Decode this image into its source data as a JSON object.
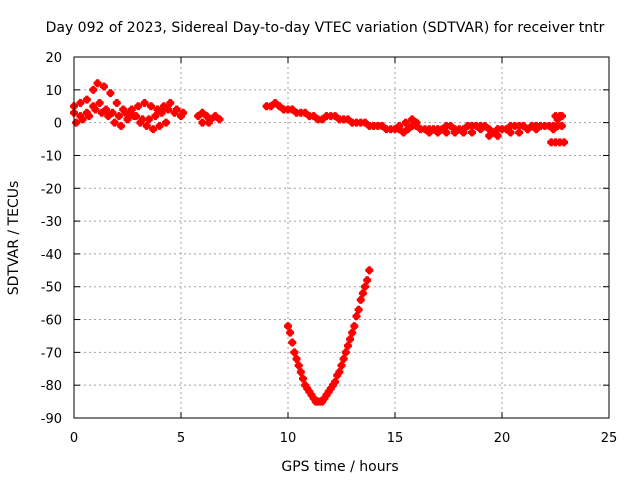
{
  "chart_data": {
    "type": "scatter",
    "title": "Day 092 of 2023, Sidereal Day-to-day VTEC variation (SDTVAR) for receiver tntr",
    "xlabel": "GPS time / hours",
    "ylabel": "SDTVAR / TECUs",
    "xlim": [
      0,
      25
    ],
    "ylim": [
      -90,
      20
    ],
    "xticks": [
      "0",
      "5",
      "10",
      "15",
      "20",
      "25"
    ],
    "yticks": [
      "20",
      "10",
      "0",
      "-10",
      "-20",
      "-30",
      "-40",
      "-50",
      "-60",
      "-70",
      "-80",
      "-90"
    ],
    "grid": true,
    "marker_color": "#ff0000",
    "series": [
      {
        "points": [
          [
            0.0,
            5
          ],
          [
            0.3,
            6
          ],
          [
            0.6,
            7
          ],
          [
            0.9,
            10
          ],
          [
            1.1,
            12
          ],
          [
            1.4,
            11
          ],
          [
            1.7,
            9
          ],
          [
            2.0,
            6
          ],
          [
            2.3,
            4
          ],
          [
            2.6,
            3
          ],
          [
            2.9,
            2
          ],
          [
            3.2,
            1
          ],
          [
            3.5,
            1
          ],
          [
            3.8,
            2
          ],
          [
            4.1,
            3
          ],
          [
            4.4,
            4
          ],
          [
            4.7,
            3
          ],
          [
            5.0,
            2
          ],
          [
            0.0,
            3
          ],
          [
            0.3,
            2
          ],
          [
            0.6,
            3
          ],
          [
            0.9,
            5
          ],
          [
            1.2,
            6
          ],
          [
            1.5,
            4
          ],
          [
            1.8,
            3
          ],
          [
            2.1,
            2
          ],
          [
            2.4,
            3
          ],
          [
            2.7,
            4
          ],
          [
            3.0,
            5
          ],
          [
            3.3,
            6
          ],
          [
            3.6,
            5
          ],
          [
            3.9,
            4
          ],
          [
            4.2,
            5
          ],
          [
            4.5,
            6
          ],
          [
            4.8,
            4
          ],
          [
            5.1,
            3
          ],
          [
            0.1,
            0
          ],
          [
            0.4,
            1
          ],
          [
            0.7,
            2
          ],
          [
            1.0,
            4
          ],
          [
            1.3,
            3
          ],
          [
            1.6,
            2
          ],
          [
            1.9,
            0
          ],
          [
            2.2,
            -1
          ],
          [
            2.5,
            1
          ],
          [
            2.8,
            2
          ],
          [
            3.1,
            0
          ],
          [
            3.4,
            -1
          ],
          [
            3.7,
            -2
          ],
          [
            4.0,
            -1
          ],
          [
            4.3,
            0
          ],
          [
            5.8,
            2
          ],
          [
            6.0,
            3
          ],
          [
            6.2,
            2
          ],
          [
            6.4,
            1
          ],
          [
            6.6,
            2
          ],
          [
            6.8,
            1
          ],
          [
            6.0,
            0
          ],
          [
            6.3,
            0
          ],
          [
            9.0,
            5
          ],
          [
            9.2,
            5
          ],
          [
            9.4,
            6
          ],
          [
            9.6,
            5
          ],
          [
            9.8,
            4
          ],
          [
            10.0,
            4
          ],
          [
            10.2,
            4
          ],
          [
            10.4,
            3
          ],
          [
            10.6,
            3
          ],
          [
            10.8,
            3
          ],
          [
            11.0,
            2
          ],
          [
            11.2,
            2
          ],
          [
            11.4,
            1
          ],
          [
            11.6,
            1
          ],
          [
            11.8,
            2
          ],
          [
            12.0,
            2
          ],
          [
            12.2,
            2
          ],
          [
            12.4,
            1
          ],
          [
            12.6,
            1
          ],
          [
            12.8,
            1
          ],
          [
            13.0,
            0
          ],
          [
            13.2,
            0
          ],
          [
            13.4,
            0
          ],
          [
            13.6,
            0
          ],
          [
            13.8,
            -1
          ],
          [
            14.0,
            -1
          ],
          [
            14.2,
            -1
          ],
          [
            14.4,
            -1
          ],
          [
            14.6,
            -2
          ],
          [
            14.8,
            -2
          ],
          [
            15.0,
            -2
          ],
          [
            15.2,
            -2
          ],
          [
            15.4,
            -3
          ],
          [
            15.6,
            -2
          ],
          [
            15.8,
            -1
          ],
          [
            16.0,
            -1
          ],
          [
            16.2,
            -2
          ],
          [
            15.2,
            -1
          ],
          [
            15.5,
            0
          ],
          [
            15.8,
            1
          ],
          [
            16.0,
            0
          ],
          [
            16.4,
            -2
          ],
          [
            16.6,
            -2
          ],
          [
            16.8,
            -2
          ],
          [
            17.0,
            -2
          ],
          [
            17.2,
            -2
          ],
          [
            17.4,
            -1
          ],
          [
            17.6,
            -1
          ],
          [
            17.8,
            -2
          ],
          [
            18.0,
            -2
          ],
          [
            18.2,
            -2
          ],
          [
            18.4,
            -1
          ],
          [
            18.6,
            -1
          ],
          [
            18.8,
            -1
          ],
          [
            19.0,
            -1
          ],
          [
            19.2,
            -1
          ],
          [
            19.4,
            -2
          ],
          [
            19.6,
            -3
          ],
          [
            19.8,
            -2
          ],
          [
            16.6,
            -3
          ],
          [
            17.0,
            -3
          ],
          [
            17.4,
            -3
          ],
          [
            17.8,
            -3
          ],
          [
            18.2,
            -3
          ],
          [
            18.6,
            -3
          ],
          [
            19.0,
            -2
          ],
          [
            19.4,
            -4
          ],
          [
            19.8,
            -4
          ],
          [
            20.0,
            -2
          ],
          [
            20.2,
            -2
          ],
          [
            20.4,
            -1
          ],
          [
            20.6,
            -1
          ],
          [
            20.8,
            -1
          ],
          [
            21.0,
            -1
          ],
          [
            21.2,
            -2
          ],
          [
            21.4,
            -1
          ],
          [
            21.6,
            -1
          ],
          [
            21.8,
            -1
          ],
          [
            22.0,
            -1
          ],
          [
            22.2,
            -1
          ],
          [
            22.4,
            -2
          ],
          [
            22.6,
            -1
          ],
          [
            22.8,
            -1
          ],
          [
            20.4,
            -3
          ],
          [
            20.8,
            -3
          ],
          [
            21.2,
            -2
          ],
          [
            21.6,
            -2
          ],
          [
            22.4,
            -1
          ],
          [
            22.6,
            1
          ],
          [
            22.8,
            2
          ],
          [
            22.5,
            2
          ],
          [
            22.7,
            2
          ],
          [
            22.3,
            -6
          ],
          [
            22.5,
            -6
          ],
          [
            22.7,
            -6
          ],
          [
            22.9,
            -6
          ],
          [
            10.0,
            -62
          ],
          [
            10.1,
            -64
          ],
          [
            10.2,
            -67
          ],
          [
            10.3,
            -70
          ],
          [
            10.4,
            -72
          ],
          [
            10.5,
            -74
          ],
          [
            10.6,
            -76
          ],
          [
            10.7,
            -78
          ],
          [
            10.8,
            -80
          ],
          [
            10.9,
            -81
          ],
          [
            11.0,
            -82
          ],
          [
            11.1,
            -83
          ],
          [
            11.2,
            -84
          ],
          [
            11.3,
            -85
          ],
          [
            11.4,
            -85
          ],
          [
            11.5,
            -85
          ],
          [
            11.6,
            -85
          ],
          [
            11.7,
            -84
          ],
          [
            11.8,
            -83
          ],
          [
            11.9,
            -82
          ],
          [
            12.0,
            -81
          ],
          [
            12.1,
            -80
          ],
          [
            12.2,
            -79
          ],
          [
            12.3,
            -77
          ],
          [
            12.4,
            -76
          ],
          [
            12.5,
            -74
          ],
          [
            12.6,
            -72
          ],
          [
            12.7,
            -70
          ],
          [
            12.8,
            -68
          ],
          [
            12.9,
            -66
          ],
          [
            13.0,
            -64
          ],
          [
            13.1,
            -62
          ],
          [
            13.2,
            -59
          ],
          [
            13.3,
            -57
          ],
          [
            13.4,
            -54
          ],
          [
            13.5,
            -52
          ],
          [
            13.6,
            -50
          ],
          [
            13.7,
            -48
          ],
          [
            13.8,
            -45
          ]
        ]
      }
    ]
  }
}
